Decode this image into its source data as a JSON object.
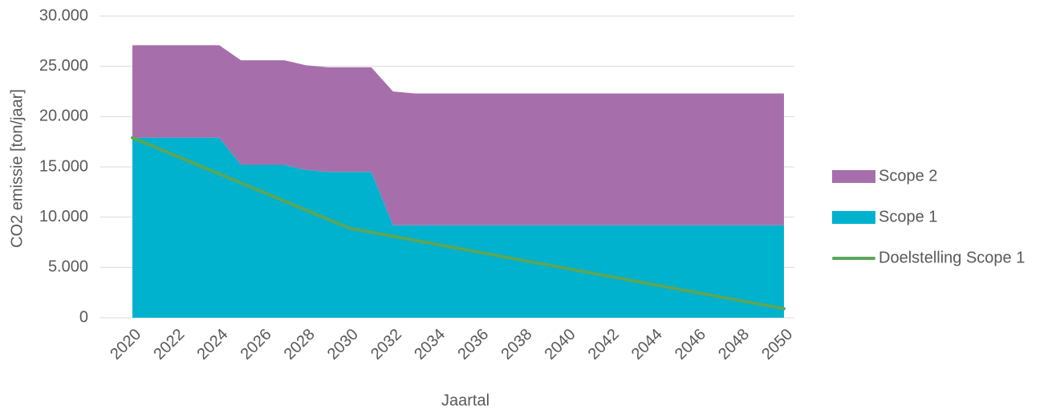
{
  "chart_data": {
    "type": "area",
    "x_label": "Jaartal",
    "y_label": "CO2 emissie [ton/jaar]",
    "x": [
      2020,
      2021,
      2022,
      2023,
      2024,
      2025,
      2026,
      2027,
      2028,
      2029,
      2030,
      2031,
      2032,
      2033,
      2034,
      2035,
      2036,
      2037,
      2038,
      2039,
      2040,
      2041,
      2042,
      2043,
      2044,
      2045,
      2046,
      2047,
      2048,
      2049,
      2050
    ],
    "xlim": [
      2020,
      2050
    ],
    "xticks": [
      2020,
      2022,
      2024,
      2026,
      2028,
      2030,
      2032,
      2034,
      2036,
      2038,
      2040,
      2042,
      2044,
      2046,
      2048,
      2050
    ],
    "ylim": [
      0,
      30000
    ],
    "yticks": [
      0,
      {
        "value": 5000,
        "label": "5.000"
      },
      {
        "value": 10000,
        "label": "10.000"
      },
      {
        "value": 15000,
        "label": "15.000"
      },
      {
        "value": 20000,
        "label": "20.000"
      },
      {
        "value": 25000,
        "label": "25.000"
      },
      {
        "value": 30000,
        "label": "30.000"
      }
    ],
    "grid": true,
    "legend": "right",
    "series": [
      {
        "name": "Scope 2",
        "type": "area",
        "color": "#a66fac",
        "values": [
          9200,
          9200,
          9200,
          9200,
          9200,
          10400,
          10400,
          10400,
          10400,
          10400,
          10400,
          10400,
          13300,
          13100,
          13100,
          13100,
          13100,
          13100,
          13100,
          13100,
          13100,
          13100,
          13100,
          13100,
          13100,
          13100,
          13100,
          13100,
          13100,
          13100,
          13100
        ]
      },
      {
        "name": "Scope 1",
        "type": "area",
        "color": "#00b2cd",
        "values": [
          17900,
          17900,
          17900,
          17900,
          17900,
          15200,
          15200,
          15200,
          14700,
          14500,
          14500,
          14500,
          9200,
          9200,
          9200,
          9200,
          9200,
          9200,
          9200,
          9200,
          9200,
          9200,
          9200,
          9200,
          9200,
          9200,
          9200,
          9200,
          9200,
          9200,
          9200
        ]
      },
      {
        "name": "Doelstelling Scope 1",
        "type": "line",
        "color": "#5aa65a",
        "values": [
          17900,
          17000,
          16100,
          15200,
          14300,
          13400,
          12500,
          11600,
          10700,
          9800,
          8900,
          8500,
          8100,
          7700,
          7300,
          6900,
          6500,
          6100,
          5700,
          5300,
          4900,
          4500,
          4100,
          3700,
          3300,
          2900,
          2500,
          2100,
          1700,
          1300,
          900
        ]
      }
    ]
  }
}
